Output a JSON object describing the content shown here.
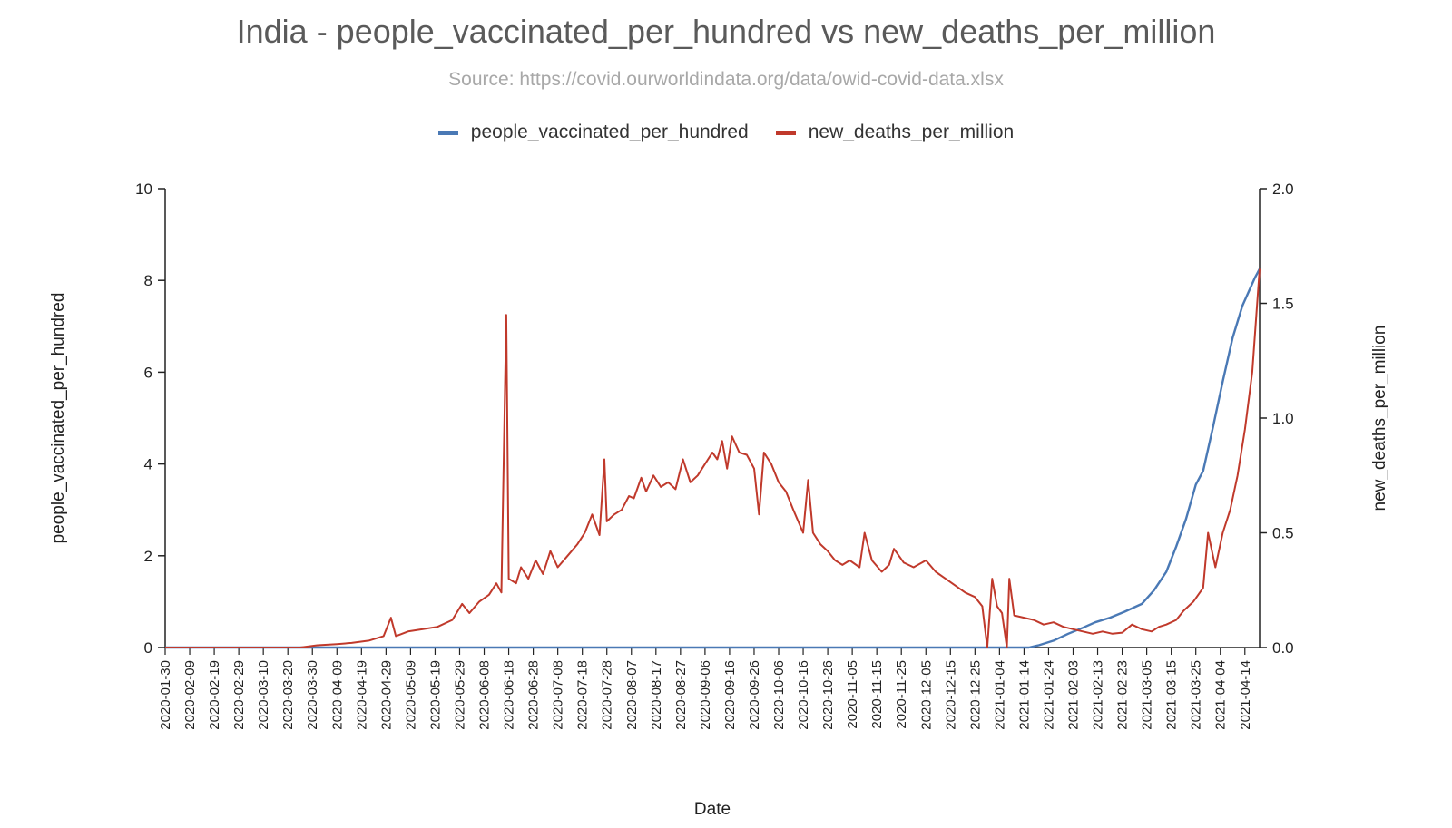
{
  "chart_data": {
    "type": "line",
    "title": "India - people_vaccinated_per_hundred vs new_deaths_per_million",
    "subtitle": "Source: https://covid.ourworldindata.org/data/owid-covid-data.xlsx",
    "xlabel": "Date",
    "ylabel_left": "people_vaccinated_per_hundred",
    "ylabel_right": "new_deaths_per_million",
    "ylim_left": [
      0,
      10
    ],
    "ylim_right": [
      0,
      2.0
    ],
    "y_ticks_left": [
      "0",
      "2",
      "4",
      "6",
      "8",
      "10"
    ],
    "y_ticks_right": [
      "0.0",
      "0.5",
      "1.0",
      "1.5",
      "2.0"
    ],
    "x_range": [
      "2020-01-30",
      "2021-04-20"
    ],
    "x_ticks": [
      "2020-01-30",
      "2020-02-09",
      "2020-02-19",
      "2020-02-29",
      "2020-03-10",
      "2020-03-20",
      "2020-03-30",
      "2020-04-09",
      "2020-04-19",
      "2020-04-29",
      "2020-05-09",
      "2020-05-19",
      "2020-05-29",
      "2020-06-08",
      "2020-06-18",
      "2020-06-28",
      "2020-07-08",
      "2020-07-18",
      "2020-07-28",
      "2020-08-07",
      "2020-08-17",
      "2020-08-27",
      "2020-09-06",
      "2020-09-16",
      "2020-09-26",
      "2020-10-06",
      "2020-10-16",
      "2020-10-26",
      "2020-11-05",
      "2020-11-15",
      "2020-11-25",
      "2020-12-05",
      "2020-12-15",
      "2020-12-25",
      "2021-01-04",
      "2021-01-14",
      "2021-01-24",
      "2021-02-03",
      "2021-02-13",
      "2021-02-23",
      "2021-03-05",
      "2021-03-15",
      "2021-03-25",
      "2021-04-04",
      "2021-04-14"
    ],
    "legend_position": "top-center",
    "grid": false,
    "series": [
      {
        "name": "people_vaccinated_per_hundred",
        "axis": "left",
        "color": "#4a79b5",
        "points": [
          [
            "2020-01-30",
            0
          ],
          [
            "2021-01-16",
            0
          ],
          [
            "2021-01-20",
            0.05
          ],
          [
            "2021-01-26",
            0.15
          ],
          [
            "2021-02-01",
            0.3
          ],
          [
            "2021-02-07",
            0.43
          ],
          [
            "2021-02-12",
            0.55
          ],
          [
            "2021-02-18",
            0.65
          ],
          [
            "2021-02-24",
            0.78
          ],
          [
            "2021-03-03",
            0.95
          ],
          [
            "2021-03-08",
            1.25
          ],
          [
            "2021-03-13",
            1.65
          ],
          [
            "2021-03-17",
            2.2
          ],
          [
            "2021-03-21",
            2.8
          ],
          [
            "2021-03-25",
            3.55
          ],
          [
            "2021-03-28",
            3.85
          ],
          [
            "2021-04-01",
            4.8
          ],
          [
            "2021-04-05",
            5.8
          ],
          [
            "2021-04-09",
            6.75
          ],
          [
            "2021-04-13",
            7.45
          ],
          [
            "2021-04-18",
            8.05
          ],
          [
            "2021-04-20",
            8.25
          ]
        ]
      },
      {
        "name": "new_deaths_per_million",
        "axis": "right",
        "color": "#c0392b",
        "points": [
          [
            "2020-01-30",
            0
          ],
          [
            "2020-03-25",
            0
          ],
          [
            "2020-04-01",
            0.01
          ],
          [
            "2020-04-09",
            0.015
          ],
          [
            "2020-04-15",
            0.02
          ],
          [
            "2020-04-22",
            0.03
          ],
          [
            "2020-04-28",
            0.05
          ],
          [
            "2020-05-01",
            0.13
          ],
          [
            "2020-05-03",
            0.05
          ],
          [
            "2020-05-08",
            0.07
          ],
          [
            "2020-05-14",
            0.08
          ],
          [
            "2020-05-20",
            0.09
          ],
          [
            "2020-05-26",
            0.12
          ],
          [
            "2020-05-30",
            0.19
          ],
          [
            "2020-06-02",
            0.15
          ],
          [
            "2020-06-06",
            0.2
          ],
          [
            "2020-06-10",
            0.23
          ],
          [
            "2020-06-13",
            0.28
          ],
          [
            "2020-06-15",
            0.24
          ],
          [
            "2020-06-17",
            1.45
          ],
          [
            "2020-06-18",
            0.3
          ],
          [
            "2020-06-21",
            0.28
          ],
          [
            "2020-06-23",
            0.35
          ],
          [
            "2020-06-26",
            0.3
          ],
          [
            "2020-06-29",
            0.38
          ],
          [
            "2020-07-02",
            0.32
          ],
          [
            "2020-07-05",
            0.42
          ],
          [
            "2020-07-08",
            0.35
          ],
          [
            "2020-07-12",
            0.4
          ],
          [
            "2020-07-16",
            0.45
          ],
          [
            "2020-07-19",
            0.5
          ],
          [
            "2020-07-22",
            0.58
          ],
          [
            "2020-07-25",
            0.49
          ],
          [
            "2020-07-27",
            0.82
          ],
          [
            "2020-07-28",
            0.55
          ],
          [
            "2020-07-31",
            0.58
          ],
          [
            "2020-08-03",
            0.6
          ],
          [
            "2020-08-06",
            0.66
          ],
          [
            "2020-08-08",
            0.65
          ],
          [
            "2020-08-11",
            0.74
          ],
          [
            "2020-08-13",
            0.68
          ],
          [
            "2020-08-16",
            0.75
          ],
          [
            "2020-08-19",
            0.7
          ],
          [
            "2020-08-22",
            0.72
          ],
          [
            "2020-08-25",
            0.69
          ],
          [
            "2020-08-28",
            0.82
          ],
          [
            "2020-08-31",
            0.72
          ],
          [
            "2020-09-03",
            0.75
          ],
          [
            "2020-09-06",
            0.8
          ],
          [
            "2020-09-09",
            0.85
          ],
          [
            "2020-09-11",
            0.82
          ],
          [
            "2020-09-13",
            0.9
          ],
          [
            "2020-09-15",
            0.78
          ],
          [
            "2020-09-17",
            0.92
          ],
          [
            "2020-09-20",
            0.85
          ],
          [
            "2020-09-23",
            0.84
          ],
          [
            "2020-09-26",
            0.78
          ],
          [
            "2020-09-28",
            0.58
          ],
          [
            "2020-09-30",
            0.85
          ],
          [
            "2020-10-03",
            0.8
          ],
          [
            "2020-10-06",
            0.72
          ],
          [
            "2020-10-09",
            0.68
          ],
          [
            "2020-10-12",
            0.6
          ],
          [
            "2020-10-14",
            0.55
          ],
          [
            "2020-10-16",
            0.5
          ],
          [
            "2020-10-18",
            0.73
          ],
          [
            "2020-10-20",
            0.5
          ],
          [
            "2020-10-23",
            0.45
          ],
          [
            "2020-10-26",
            0.42
          ],
          [
            "2020-10-29",
            0.38
          ],
          [
            "2020-11-01",
            0.36
          ],
          [
            "2020-11-04",
            0.38
          ],
          [
            "2020-11-08",
            0.35
          ],
          [
            "2020-11-10",
            0.5
          ],
          [
            "2020-11-13",
            0.38
          ],
          [
            "2020-11-17",
            0.33
          ],
          [
            "2020-11-20",
            0.36
          ],
          [
            "2020-11-22",
            0.43
          ],
          [
            "2020-11-26",
            0.37
          ],
          [
            "2020-11-30",
            0.35
          ],
          [
            "2020-12-05",
            0.38
          ],
          [
            "2020-12-09",
            0.33
          ],
          [
            "2020-12-13",
            0.3
          ],
          [
            "2020-12-17",
            0.27
          ],
          [
            "2020-12-21",
            0.24
          ],
          [
            "2020-12-25",
            0.22
          ],
          [
            "2020-12-28",
            0.18
          ],
          [
            "2020-12-30",
            0.0
          ],
          [
            "2021-01-01",
            0.3
          ],
          [
            "2021-01-03",
            0.18
          ],
          [
            "2021-01-05",
            0.15
          ],
          [
            "2021-01-07",
            0.0
          ],
          [
            "2021-01-08",
            0.3
          ],
          [
            "2021-01-10",
            0.14
          ],
          [
            "2021-01-14",
            0.13
          ],
          [
            "2021-01-18",
            0.12
          ],
          [
            "2021-01-22",
            0.1
          ],
          [
            "2021-01-26",
            0.11
          ],
          [
            "2021-01-30",
            0.09
          ],
          [
            "2021-02-03",
            0.08
          ],
          [
            "2021-02-07",
            0.07
          ],
          [
            "2021-02-11",
            0.06
          ],
          [
            "2021-02-15",
            0.07
          ],
          [
            "2021-02-19",
            0.06
          ],
          [
            "2021-02-23",
            0.065
          ],
          [
            "2021-02-27",
            0.1
          ],
          [
            "2021-03-03",
            0.08
          ],
          [
            "2021-03-07",
            0.07
          ],
          [
            "2021-03-10",
            0.09
          ],
          [
            "2021-03-13",
            0.1
          ],
          [
            "2021-03-17",
            0.12
          ],
          [
            "2021-03-20",
            0.16
          ],
          [
            "2021-03-24",
            0.2
          ],
          [
            "2021-03-28",
            0.26
          ],
          [
            "2021-03-30",
            0.5
          ],
          [
            "2021-04-02",
            0.35
          ],
          [
            "2021-04-05",
            0.5
          ],
          [
            "2021-04-08",
            0.6
          ],
          [
            "2021-04-11",
            0.75
          ],
          [
            "2021-04-14",
            0.95
          ],
          [
            "2021-04-17",
            1.2
          ],
          [
            "2021-04-20",
            1.65
          ]
        ]
      }
    ]
  }
}
